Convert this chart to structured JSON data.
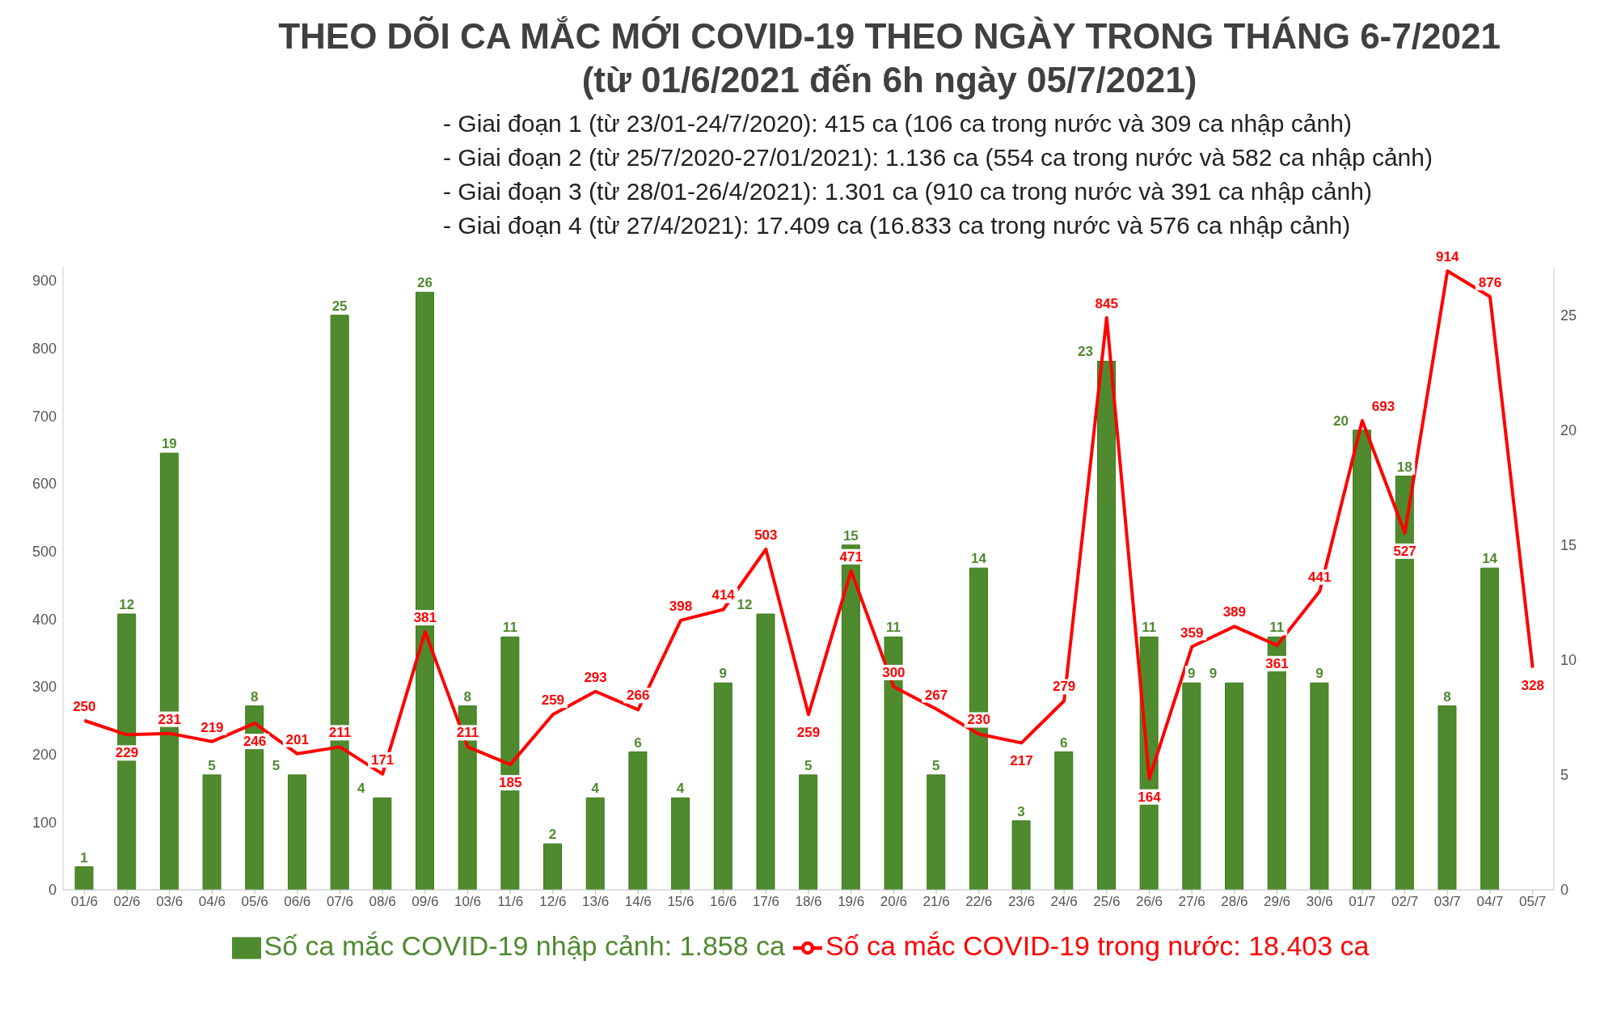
{
  "chart_data": {
    "type": "bar",
    "title": "THEO DÕI CA MẮC MỚI COVID-19 THEO NGÀY TRONG THÁNG 6-7/2021",
    "subtitle": "(từ 01/6/2021 đến 6h ngày 05/7/2021)",
    "annotations": [
      "- Giai đoạn 1 (từ 23/01-24/7/2020): 415 ca (106 ca trong nước và 309 ca nhập cảnh)",
      "- Giai đoạn 2 (từ 25/7/2020-27/01/2021): 1.136 ca (554 ca trong nước và 582 ca nhập cảnh)",
      "- Giai đoạn 3 (từ 28/01-26/4/2021): 1.301 ca (910 ca trong nước và 391 ca nhập cảnh)",
      "- Giai đoạn 4 (từ 27/4/2021): 17.409 ca (16.833 ca trong nước và 576 ca nhập cảnh)"
    ],
    "categories": [
      "01/6",
      "02/6",
      "03/6",
      "04/6",
      "05/6",
      "06/6",
      "07/6",
      "08/6",
      "09/6",
      "10/6",
      "11/6",
      "12/6",
      "13/6",
      "14/6",
      "15/6",
      "16/6",
      "17/6",
      "18/6",
      "19/6",
      "20/6",
      "21/6",
      "22/6",
      "23/6",
      "24/6",
      "25/6",
      "26/6",
      "27/6",
      "28/6",
      "29/6",
      "30/6",
      "01/7",
      "02/7",
      "03/7",
      "04/7",
      "05/7"
    ],
    "series": [
      {
        "name": "Số ca mắc COVID-19 nhập cảnh: 1.858 ca",
        "type": "bar",
        "axis": "y2",
        "color": "#4f8a2f",
        "values": [
          1,
          12,
          19,
          5,
          8,
          5,
          25,
          4,
          26,
          8,
          11,
          2,
          4,
          6,
          4,
          9,
          12,
          5,
          15,
          11,
          5,
          14,
          3,
          6,
          23,
          11,
          9,
          9,
          11,
          9,
          20,
          18,
          8,
          14,
          null
        ]
      },
      {
        "name": "Số ca mắc COVID-19 trong nước: 18.403 ca",
        "type": "line",
        "color": "#ff0000",
        "values": [
          250,
          229,
          231,
          219,
          246,
          201,
          211,
          171,
          381,
          211,
          185,
          259,
          293,
          266,
          398,
          414,
          503,
          259,
          471,
          300,
          267,
          230,
          217,
          279,
          845,
          164,
          359,
          389,
          361,
          441,
          693,
          527,
          914,
          876,
          328
        ]
      }
    ],
    "ylim": [
      0,
      920
    ],
    "yticks": [
      0,
      100,
      200,
      300,
      400,
      500,
      600,
      700,
      800,
      900
    ],
    "y2lim": [
      0,
      27.1
    ],
    "y2ticks": [
      0,
      5,
      10,
      15,
      20,
      25
    ],
    "data_labels": true,
    "legend": "bottom",
    "grid": false
  }
}
